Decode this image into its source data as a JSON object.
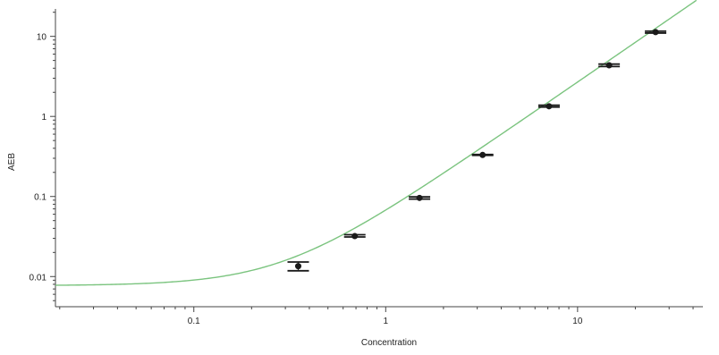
{
  "chart_data": {
    "type": "scatter",
    "title": "",
    "xlabel": "Concentration",
    "ylabel": "AEB",
    "xscale": "log",
    "yscale": "log",
    "xlim": [
      0.019,
      45
    ],
    "ylim": [
      0.0042,
      22
    ],
    "grid": false,
    "legend": "none",
    "x_ticks": [
      {
        "value": 0.1,
        "label": "0.1"
      },
      {
        "value": 1,
        "label": "1"
      },
      {
        "value": 10,
        "label": "10"
      }
    ],
    "y_ticks": [
      {
        "value": 0.01,
        "label": "0.01"
      },
      {
        "value": 0.1,
        "label": "0.1"
      },
      {
        "value": 1,
        "label": "1"
      },
      {
        "value": 10,
        "label": "10"
      }
    ],
    "series": [
      {
        "points": [
          {
            "x": 0.35,
            "y": 0.0135,
            "y_low": 0.0118,
            "y_high": 0.0152
          },
          {
            "x": 0.69,
            "y": 0.032,
            "y_low": 0.0312,
            "y_high": 0.0333
          },
          {
            "x": 1.5,
            "y": 0.096,
            "y_low": 0.093,
            "y_high": 0.099
          },
          {
            "x": 3.2,
            "y": 0.33,
            "y_low": 0.326,
            "y_high": 0.334
          },
          {
            "x": 7.1,
            "y": 1.34,
            "y_low": 1.31,
            "y_high": 1.38
          },
          {
            "x": 14.6,
            "y": 4.35,
            "y_low": 4.2,
            "y_high": 4.5
          },
          {
            "x": 25.5,
            "y": 11.3,
            "y_low": 11.0,
            "y_high": 11.6
          }
        ]
      }
    ],
    "fit_curve": {
      "baseline": 0.0077,
      "coefficient": 0.06,
      "exponent": 1.65,
      "color": "#7bc47f"
    },
    "colors": {
      "points": "#1a1a1a",
      "error_bars": "#1a1a1a",
      "axes": "#444444"
    }
  }
}
